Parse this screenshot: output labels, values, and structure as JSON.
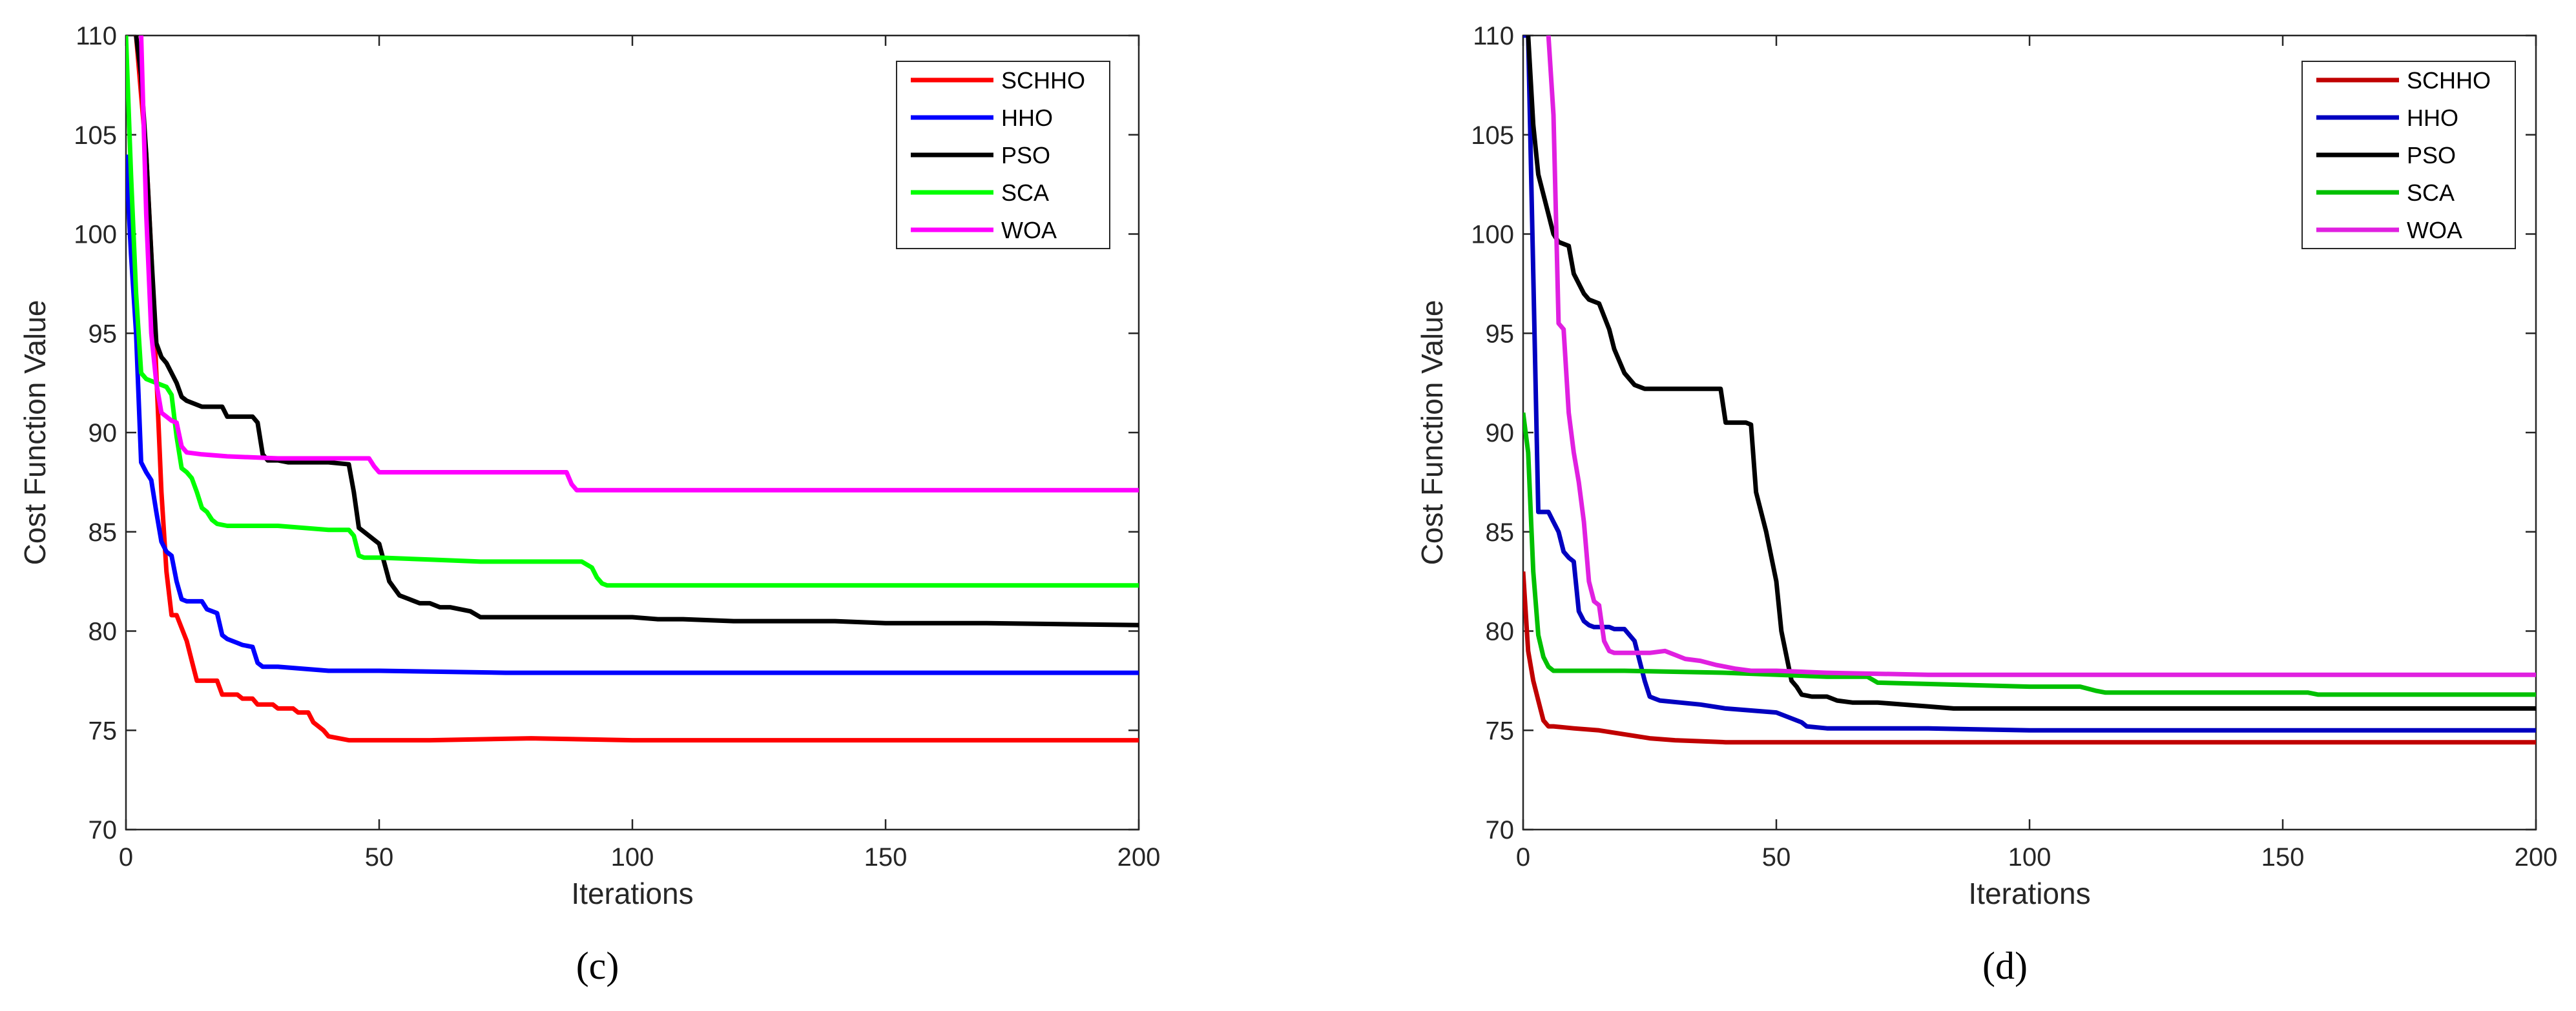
{
  "figure_captions": [
    "(c)",
    "(d)"
  ],
  "chart_data": [
    {
      "type": "line",
      "panel_label": "c",
      "caption": "(c)",
      "xlabel": "Iterations",
      "ylabel": "Cost Function Value",
      "xlim": [
        0,
        200
      ],
      "ylim": [
        70,
        110
      ],
      "xticks": [
        0,
        50,
        100,
        150,
        200
      ],
      "yticks": [
        70,
        75,
        80,
        85,
        90,
        95,
        100,
        105,
        110
      ],
      "legend_position": "top-right",
      "series": [
        {
          "name": "SCHHO",
          "color": "#ff0000",
          "x": [
            2,
            3,
            4,
            5,
            6,
            7,
            8,
            9,
            10,
            12,
            13,
            14,
            18,
            19,
            22,
            23,
            25,
            26,
            29,
            30,
            33,
            34,
            36,
            37,
            39,
            40,
            42,
            44,
            50,
            60,
            80,
            100,
            150,
            200
          ],
          "y": [
            110,
            107,
            104,
            99,
            93,
            87,
            83,
            80.8,
            80.8,
            79.5,
            78.5,
            77.5,
            77.5,
            76.8,
            76.8,
            76.6,
            76.6,
            76.3,
            76.3,
            76.1,
            76.1,
            75.9,
            75.9,
            75.4,
            75.0,
            74.7,
            74.6,
            74.5,
            74.5,
            74.5,
            74.6,
            74.5,
            74.5,
            74.5
          ]
        },
        {
          "name": "HHO",
          "color": "#0000ff",
          "x": [
            0,
            1,
            2,
            3,
            4,
            5,
            6,
            7,
            8,
            9,
            10,
            11,
            12,
            15,
            16,
            18,
            19,
            20,
            22,
            23,
            25,
            26,
            27,
            30,
            35,
            40,
            50,
            75,
            100,
            150,
            200
          ],
          "y": [
            104,
            99,
            95,
            88.5,
            88,
            87.6,
            86,
            84.5,
            84,
            83.8,
            82.5,
            81.6,
            81.5,
            81.5,
            81.1,
            80.9,
            79.8,
            79.6,
            79.4,
            79.3,
            79.2,
            78.4,
            78.2,
            78.2,
            78.1,
            78.0,
            78.0,
            77.9,
            77.9,
            77.9,
            77.9
          ]
        },
        {
          "name": "PSO",
          "color": "#000000",
          "x": [
            2,
            3,
            4,
            5,
            6,
            7,
            8,
            9,
            10,
            11,
            12,
            15,
            19,
            20,
            25,
            26,
            27,
            28,
            30,
            32,
            40,
            44,
            45,
            46,
            47,
            48,
            49,
            50,
            52,
            54,
            56,
            58,
            60,
            62,
            64,
            66,
            68,
            70,
            80,
            100,
            105,
            110,
            120,
            140,
            150,
            170,
            200
          ],
          "y": [
            110,
            108,
            104,
            99,
            94.5,
            93.8,
            93.5,
            93,
            92.5,
            91.8,
            91.6,
            91.3,
            91.3,
            90.8,
            90.8,
            90.5,
            88.9,
            88.6,
            88.6,
            88.5,
            88.5,
            88.4,
            87,
            85.2,
            85,
            84.8,
            84.6,
            84.4,
            82.5,
            81.8,
            81.6,
            81.4,
            81.4,
            81.2,
            81.2,
            81.1,
            81,
            80.7,
            80.7,
            80.7,
            80.6,
            80.6,
            80.5,
            80.5,
            80.4,
            80.4,
            80.3
          ]
        },
        {
          "name": "SCA",
          "color": "#00ff00",
          "x": [
            0,
            1,
            2,
            3,
            4,
            5,
            6,
            7,
            8,
            9,
            10,
            11,
            12,
            13,
            14,
            15,
            16,
            17,
            18,
            20,
            25,
            30,
            35,
            40,
            44,
            45,
            46,
            47,
            50,
            60,
            70,
            80,
            90,
            92,
            93,
            94,
            95,
            100,
            150,
            200
          ],
          "y": [
            110,
            103,
            97,
            93,
            92.7,
            92.6,
            92.5,
            92.4,
            92.3,
            91.9,
            89.8,
            88.2,
            88.0,
            87.7,
            87.0,
            86.2,
            86.0,
            85.6,
            85.4,
            85.3,
            85.3,
            85.3,
            85.2,
            85.1,
            85.1,
            84.8,
            83.8,
            83.7,
            83.7,
            83.6,
            83.5,
            83.5,
            83.5,
            83.2,
            82.7,
            82.4,
            82.3,
            82.3,
            82.3,
            82.3
          ]
        },
        {
          "name": "WOA",
          "color": "#ff00ff",
          "x": [
            3,
            4,
            5,
            6,
            7,
            8,
            9,
            10,
            11,
            12,
            15,
            20,
            30,
            35,
            40,
            48,
            49,
            50,
            60,
            70,
            87,
            88,
            89,
            90,
            100,
            150,
            200
          ],
          "y": [
            110,
            101,
            95,
            92.5,
            91,
            90.8,
            90.6,
            90.5,
            89.3,
            89.0,
            88.9,
            88.8,
            88.7,
            88.7,
            88.7,
            88.7,
            88.3,
            88.0,
            88.0,
            88.0,
            88.0,
            87.4,
            87.1,
            87.1,
            87.1,
            87.1,
            87.1
          ]
        }
      ]
    },
    {
      "type": "line",
      "panel_label": "d",
      "caption": "(d)",
      "xlabel": "Iterations",
      "ylabel": "Cost Function Value",
      "xlim": [
        0,
        200
      ],
      "ylim": [
        70,
        110
      ],
      "xticks": [
        0,
        50,
        100,
        150,
        200
      ],
      "yticks": [
        70,
        75,
        80,
        85,
        90,
        95,
        100,
        105,
        110
      ],
      "legend_position": "top-right",
      "series": [
        {
          "name": "SCHHO",
          "color": "#c00000",
          "x": [
            0,
            1,
            2,
            3,
            4,
            5,
            6,
            10,
            15,
            20,
            25,
            30,
            40,
            50,
            100,
            150,
            200
          ],
          "y": [
            83,
            79,
            77.5,
            76.5,
            75.5,
            75.2,
            75.2,
            75.1,
            75.0,
            74.8,
            74.6,
            74.5,
            74.4,
            74.4,
            74.4,
            74.4,
            74.4
          ]
        },
        {
          "name": "HHO",
          "color": "#0000c0",
          "x": [
            0,
            1,
            2,
            3,
            5,
            6,
            7,
            8,
            9,
            10,
            11,
            12,
            13,
            14,
            15,
            16,
            17,
            18,
            20,
            22,
            24,
            25,
            26,
            27,
            35,
            40,
            45,
            50,
            55,
            56,
            60,
            80,
            100,
            150,
            200
          ],
          "y": [
            110,
            110,
            98,
            86,
            86,
            85.5,
            85,
            84,
            83.7,
            83.5,
            81,
            80.5,
            80.3,
            80.2,
            80.2,
            80.2,
            80.2,
            80.1,
            80.1,
            79.5,
            77.5,
            76.7,
            76.6,
            76.5,
            76.3,
            76.1,
            76.0,
            75.9,
            75.4,
            75.2,
            75.1,
            75.1,
            75.0,
            75.0,
            75.0
          ]
        },
        {
          "name": "PSO",
          "color": "#000000",
          "x": [
            1,
            2,
            3,
            5,
            6,
            7,
            9,
            10,
            12,
            13,
            15,
            17,
            18,
            20,
            22,
            24,
            25,
            30,
            35,
            39,
            40,
            41,
            44,
            45,
            46,
            48,
            50,
            51,
            53,
            54,
            55,
            57,
            60,
            62,
            65,
            70,
            75,
            80,
            85,
            100,
            150,
            200
          ],
          "y": [
            110,
            105.5,
            103,
            101,
            100,
            99.6,
            99.4,
            98,
            97,
            96.7,
            96.5,
            95.2,
            94.2,
            93,
            92.4,
            92.2,
            92.2,
            92.2,
            92.2,
            92.2,
            90.5,
            90.5,
            90.5,
            90.4,
            87,
            85,
            82.5,
            80,
            77.5,
            77.2,
            76.8,
            76.7,
            76.7,
            76.5,
            76.4,
            76.4,
            76.3,
            76.2,
            76.1,
            76.1,
            76.1,
            76.1
          ]
        },
        {
          "name": "SCA",
          "color": "#00c000",
          "x": [
            0,
            1,
            2,
            3,
            4,
            5,
            6,
            10,
            20,
            40,
            60,
            68,
            70,
            100,
            110,
            113,
            115,
            150,
            155,
            157,
            160,
            200
          ],
          "y": [
            91,
            89,
            83,
            79.8,
            78.7,
            78.2,
            78.0,
            78.0,
            78.0,
            77.9,
            77.7,
            77.7,
            77.4,
            77.2,
            77.2,
            77.0,
            76.9,
            76.9,
            76.9,
            76.8,
            76.8,
            76.8
          ]
        },
        {
          "name": "WOA",
          "color": "#e020e0",
          "x": [
            5,
            6,
            7,
            8,
            9,
            10,
            11,
            12,
            13,
            14,
            15,
            16,
            17,
            18,
            20,
            25,
            28,
            30,
            32,
            35,
            38,
            40,
            42,
            45,
            50,
            60,
            80,
            100,
            150,
            200
          ],
          "y": [
            110,
            106,
            95.5,
            95.2,
            91,
            89,
            87.5,
            85.5,
            82.5,
            81.5,
            81.3,
            79.5,
            79,
            78.9,
            78.9,
            78.9,
            79,
            78.8,
            78.6,
            78.5,
            78.3,
            78.2,
            78.1,
            78.0,
            78.0,
            77.9,
            77.8,
            77.8,
            77.8,
            77.8
          ]
        }
      ]
    }
  ]
}
